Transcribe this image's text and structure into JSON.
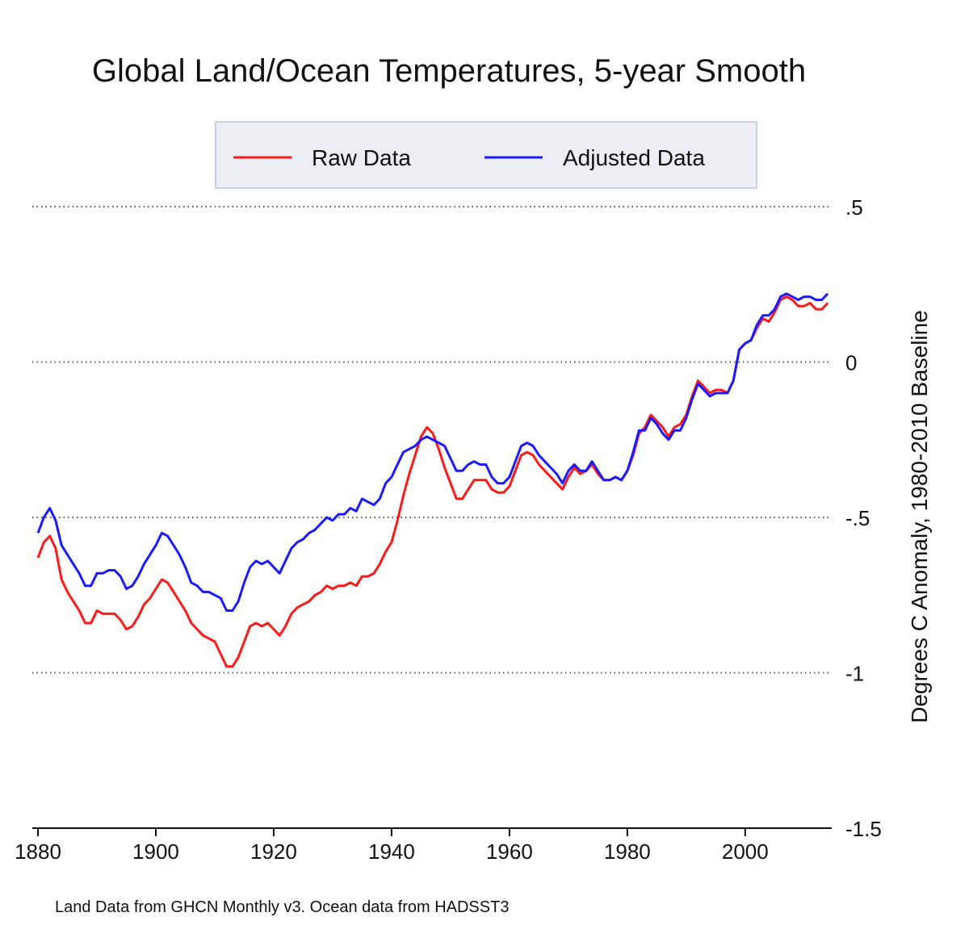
{
  "chart_data": {
    "type": "line",
    "title": "Global Land/Ocean Temperatures, 5-year Smooth",
    "xlabel": "",
    "ylabel": "Degrees C Anomaly, 1980-2010 Baseline",
    "xlim": [
      1880,
      2014
    ],
    "ylim": [
      -1.5,
      0.5
    ],
    "x_ticks": [
      1880,
      1900,
      1920,
      1940,
      1960,
      1980,
      2000
    ],
    "x_tick_labels": [
      "1880",
      "1900",
      "1920",
      "1940",
      "1960",
      "1980",
      "2000"
    ],
    "y_ticks": [
      0.5,
      0,
      -0.5,
      -1,
      -1.5
    ],
    "y_tick_labels": [
      ".5",
      "0",
      "-.5",
      "-1",
      "-1.5"
    ],
    "y_axis_side": "right",
    "grid": "horizontal dotted",
    "legend_position": "top-center",
    "note": "Land Data from GHCN Monthly v3. Ocean data from HADSST3",
    "series": [
      {
        "name": "Raw Data",
        "color": "#ff1a1a",
        "points": [
          [
            1880,
            -0.63
          ],
          [
            1881,
            -0.58
          ],
          [
            1882,
            -0.56
          ],
          [
            1883,
            -0.6
          ],
          [
            1884,
            -0.7
          ],
          [
            1885,
            -0.74
          ],
          [
            1886,
            -0.77
          ],
          [
            1887,
            -0.8
          ],
          [
            1888,
            -0.84
          ],
          [
            1889,
            -0.84
          ],
          [
            1890,
            -0.8
          ],
          [
            1891,
            -0.81
          ],
          [
            1892,
            -0.81
          ],
          [
            1893,
            -0.81
          ],
          [
            1894,
            -0.83
          ],
          [
            1895,
            -0.86
          ],
          [
            1896,
            -0.85
          ],
          [
            1897,
            -0.82
          ],
          [
            1898,
            -0.78
          ],
          [
            1899,
            -0.76
          ],
          [
            1900,
            -0.73
          ],
          [
            1901,
            -0.7
          ],
          [
            1902,
            -0.71
          ],
          [
            1903,
            -0.74
          ],
          [
            1904,
            -0.77
          ],
          [
            1905,
            -0.8
          ],
          [
            1906,
            -0.84
          ],
          [
            1907,
            -0.86
          ],
          [
            1908,
            -0.88
          ],
          [
            1909,
            -0.89
          ],
          [
            1910,
            -0.9
          ],
          [
            1911,
            -0.94
          ],
          [
            1912,
            -0.98
          ],
          [
            1913,
            -0.98
          ],
          [
            1914,
            -0.95
          ],
          [
            1915,
            -0.9
          ],
          [
            1916,
            -0.85
          ],
          [
            1917,
            -0.84
          ],
          [
            1918,
            -0.85
          ],
          [
            1919,
            -0.84
          ],
          [
            1920,
            -0.86
          ],
          [
            1921,
            -0.88
          ],
          [
            1922,
            -0.85
          ],
          [
            1923,
            -0.81
          ],
          [
            1924,
            -0.79
          ],
          [
            1925,
            -0.78
          ],
          [
            1926,
            -0.77
          ],
          [
            1927,
            -0.75
          ],
          [
            1928,
            -0.74
          ],
          [
            1929,
            -0.72
          ],
          [
            1930,
            -0.73
          ],
          [
            1931,
            -0.72
          ],
          [
            1932,
            -0.72
          ],
          [
            1933,
            -0.71
          ],
          [
            1934,
            -0.72
          ],
          [
            1935,
            -0.69
          ],
          [
            1936,
            -0.69
          ],
          [
            1937,
            -0.68
          ],
          [
            1938,
            -0.65
          ],
          [
            1939,
            -0.61
          ],
          [
            1940,
            -0.58
          ],
          [
            1941,
            -0.51
          ],
          [
            1942,
            -0.43
          ],
          [
            1943,
            -0.36
          ],
          [
            1944,
            -0.3
          ],
          [
            1945,
            -0.24
          ],
          [
            1946,
            -0.21
          ],
          [
            1947,
            -0.23
          ],
          [
            1948,
            -0.28
          ],
          [
            1949,
            -0.34
          ],
          [
            1950,
            -0.39
          ],
          [
            1951,
            -0.44
          ],
          [
            1952,
            -0.44
          ],
          [
            1953,
            -0.41
          ],
          [
            1954,
            -0.38
          ],
          [
            1955,
            -0.38
          ],
          [
            1956,
            -0.38
          ],
          [
            1957,
            -0.41
          ],
          [
            1958,
            -0.42
          ],
          [
            1959,
            -0.42
          ],
          [
            1960,
            -0.4
          ],
          [
            1961,
            -0.35
          ],
          [
            1962,
            -0.3
          ],
          [
            1963,
            -0.29
          ],
          [
            1964,
            -0.3
          ],
          [
            1965,
            -0.33
          ],
          [
            1966,
            -0.35
          ],
          [
            1967,
            -0.37
          ],
          [
            1968,
            -0.39
          ],
          [
            1969,
            -0.41
          ],
          [
            1970,
            -0.37
          ],
          [
            1971,
            -0.34
          ],
          [
            1972,
            -0.36
          ],
          [
            1973,
            -0.35
          ],
          [
            1974,
            -0.33
          ],
          [
            1975,
            -0.36
          ],
          [
            1976,
            -0.38
          ],
          [
            1977,
            -0.38
          ],
          [
            1978,
            -0.37
          ],
          [
            1979,
            -0.38
          ],
          [
            1980,
            -0.35
          ],
          [
            1981,
            -0.3
          ],
          [
            1982,
            -0.23
          ],
          [
            1983,
            -0.21
          ],
          [
            1984,
            -0.17
          ],
          [
            1985,
            -0.19
          ],
          [
            1986,
            -0.21
          ],
          [
            1987,
            -0.24
          ],
          [
            1988,
            -0.21
          ],
          [
            1989,
            -0.2
          ],
          [
            1990,
            -0.17
          ],
          [
            1991,
            -0.11
          ],
          [
            1992,
            -0.06
          ],
          [
            1993,
            -0.08
          ],
          [
            1994,
            -0.1
          ],
          [
            1995,
            -0.09
          ],
          [
            1996,
            -0.09
          ],
          [
            1997,
            -0.1
          ],
          [
            1998,
            -0.06
          ],
          [
            1999,
            0.04
          ],
          [
            2000,
            0.06
          ],
          [
            2001,
            0.07
          ],
          [
            2002,
            0.11
          ],
          [
            2003,
            0.14
          ],
          [
            2004,
            0.13
          ],
          [
            2005,
            0.16
          ],
          [
            2006,
            0.2
          ],
          [
            2007,
            0.21
          ],
          [
            2008,
            0.2
          ],
          [
            2009,
            0.18
          ],
          [
            2010,
            0.18
          ],
          [
            2011,
            0.19
          ],
          [
            2012,
            0.17
          ],
          [
            2013,
            0.17
          ],
          [
            2014,
            0.19
          ]
        ]
      },
      {
        "name": "Adjusted Data",
        "color": "#1a1aff",
        "points": [
          [
            1880,
            -0.55
          ],
          [
            1881,
            -0.5
          ],
          [
            1882,
            -0.47
          ],
          [
            1883,
            -0.51
          ],
          [
            1884,
            -0.59
          ],
          [
            1885,
            -0.62
          ],
          [
            1886,
            -0.65
          ],
          [
            1887,
            -0.68
          ],
          [
            1888,
            -0.72
          ],
          [
            1889,
            -0.72
          ],
          [
            1890,
            -0.68
          ],
          [
            1891,
            -0.68
          ],
          [
            1892,
            -0.67
          ],
          [
            1893,
            -0.67
          ],
          [
            1894,
            -0.69
          ],
          [
            1895,
            -0.73
          ],
          [
            1896,
            -0.72
          ],
          [
            1897,
            -0.69
          ],
          [
            1898,
            -0.65
          ],
          [
            1899,
            -0.62
          ],
          [
            1900,
            -0.59
          ],
          [
            1901,
            -0.55
          ],
          [
            1902,
            -0.56
          ],
          [
            1903,
            -0.59
          ],
          [
            1904,
            -0.62
          ],
          [
            1905,
            -0.66
          ],
          [
            1906,
            -0.71
          ],
          [
            1907,
            -0.72
          ],
          [
            1908,
            -0.74
          ],
          [
            1909,
            -0.74
          ],
          [
            1910,
            -0.75
          ],
          [
            1911,
            -0.76
          ],
          [
            1912,
            -0.8
          ],
          [
            1913,
            -0.8
          ],
          [
            1914,
            -0.77
          ],
          [
            1915,
            -0.71
          ],
          [
            1916,
            -0.66
          ],
          [
            1917,
            -0.64
          ],
          [
            1918,
            -0.65
          ],
          [
            1919,
            -0.64
          ],
          [
            1920,
            -0.66
          ],
          [
            1921,
            -0.68
          ],
          [
            1922,
            -0.64
          ],
          [
            1923,
            -0.6
          ],
          [
            1924,
            -0.58
          ],
          [
            1925,
            -0.57
          ],
          [
            1926,
            -0.55
          ],
          [
            1927,
            -0.54
          ],
          [
            1928,
            -0.52
          ],
          [
            1929,
            -0.5
          ],
          [
            1930,
            -0.51
          ],
          [
            1931,
            -0.49
          ],
          [
            1932,
            -0.49
          ],
          [
            1933,
            -0.47
          ],
          [
            1934,
            -0.48
          ],
          [
            1935,
            -0.44
          ],
          [
            1936,
            -0.45
          ],
          [
            1937,
            -0.46
          ],
          [
            1938,
            -0.44
          ],
          [
            1939,
            -0.39
          ],
          [
            1940,
            -0.37
          ],
          [
            1941,
            -0.33
          ],
          [
            1942,
            -0.29
          ],
          [
            1943,
            -0.28
          ],
          [
            1944,
            -0.27
          ],
          [
            1945,
            -0.25
          ],
          [
            1946,
            -0.24
          ],
          [
            1947,
            -0.25
          ],
          [
            1948,
            -0.26
          ],
          [
            1949,
            -0.27
          ],
          [
            1950,
            -0.31
          ],
          [
            1951,
            -0.35
          ],
          [
            1952,
            -0.35
          ],
          [
            1953,
            -0.33
          ],
          [
            1954,
            -0.32
          ],
          [
            1955,
            -0.33
          ],
          [
            1956,
            -0.33
          ],
          [
            1957,
            -0.37
          ],
          [
            1958,
            -0.39
          ],
          [
            1959,
            -0.39
          ],
          [
            1960,
            -0.37
          ],
          [
            1961,
            -0.32
          ],
          [
            1962,
            -0.27
          ],
          [
            1963,
            -0.26
          ],
          [
            1964,
            -0.27
          ],
          [
            1965,
            -0.3
          ],
          [
            1966,
            -0.32
          ],
          [
            1967,
            -0.34
          ],
          [
            1968,
            -0.36
          ],
          [
            1969,
            -0.39
          ],
          [
            1970,
            -0.35
          ],
          [
            1971,
            -0.33
          ],
          [
            1972,
            -0.35
          ],
          [
            1973,
            -0.35
          ],
          [
            1974,
            -0.32
          ],
          [
            1975,
            -0.35
          ],
          [
            1976,
            -0.38
          ],
          [
            1977,
            -0.38
          ],
          [
            1978,
            -0.37
          ],
          [
            1979,
            -0.38
          ],
          [
            1980,
            -0.35
          ],
          [
            1981,
            -0.29
          ],
          [
            1982,
            -0.22
          ],
          [
            1983,
            -0.22
          ],
          [
            1984,
            -0.18
          ],
          [
            1985,
            -0.2
          ],
          [
            1986,
            -0.23
          ],
          [
            1987,
            -0.25
          ],
          [
            1988,
            -0.22
          ],
          [
            1989,
            -0.22
          ],
          [
            1990,
            -0.18
          ],
          [
            1991,
            -0.12
          ],
          [
            1992,
            -0.07
          ],
          [
            1993,
            -0.09
          ],
          [
            1994,
            -0.11
          ],
          [
            1995,
            -0.1
          ],
          [
            1996,
            -0.1
          ],
          [
            1997,
            -0.1
          ],
          [
            1998,
            -0.06
          ],
          [
            1999,
            0.04
          ],
          [
            2000,
            0.06
          ],
          [
            2001,
            0.07
          ],
          [
            2002,
            0.12
          ],
          [
            2003,
            0.15
          ],
          [
            2004,
            0.15
          ],
          [
            2005,
            0.17
          ],
          [
            2006,
            0.21
          ],
          [
            2007,
            0.22
          ],
          [
            2008,
            0.21
          ],
          [
            2009,
            0.2
          ],
          [
            2010,
            0.21
          ],
          [
            2011,
            0.21
          ],
          [
            2012,
            0.2
          ],
          [
            2013,
            0.2
          ],
          [
            2014,
            0.22
          ]
        ]
      }
    ]
  }
}
